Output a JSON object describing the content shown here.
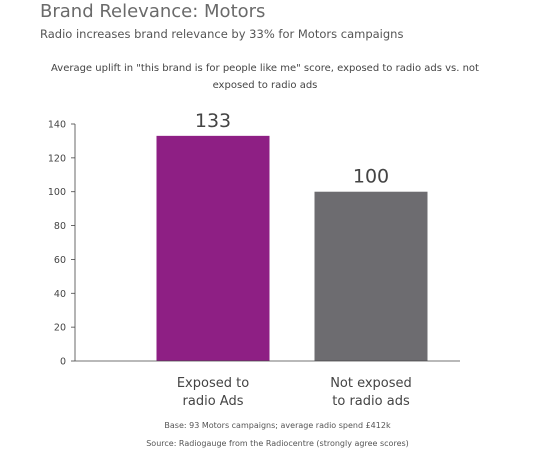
{
  "header": {
    "title": "Brand Relevance: Motors",
    "subtitle": "Radio increases brand relevance by 33% for Motors campaigns"
  },
  "chart_data": {
    "type": "bar",
    "title": "Average uplift in \"this brand is for people like me\" score, exposed to radio ads vs. not exposed to radio ads",
    "categories": [
      [
        "Exposed to",
        "radio Ads"
      ],
      [
        "Not exposed",
        "to radio ads"
      ]
    ],
    "values": [
      133,
      100
    ],
    "data_labels": [
      "133",
      "100"
    ],
    "colors": [
      "#8e1f84",
      "#6d6c70"
    ],
    "ylim": [
      0,
      140
    ],
    "yticks": [
      0,
      20,
      40,
      60,
      80,
      100,
      120,
      140
    ],
    "grid": false,
    "legend": "none"
  },
  "footnotes": {
    "base": "Base: 93 Motors campaigns; average radio spend £412k",
    "source": "Source: Radiogauge from the Radiocentre (strongly agree scores)"
  }
}
